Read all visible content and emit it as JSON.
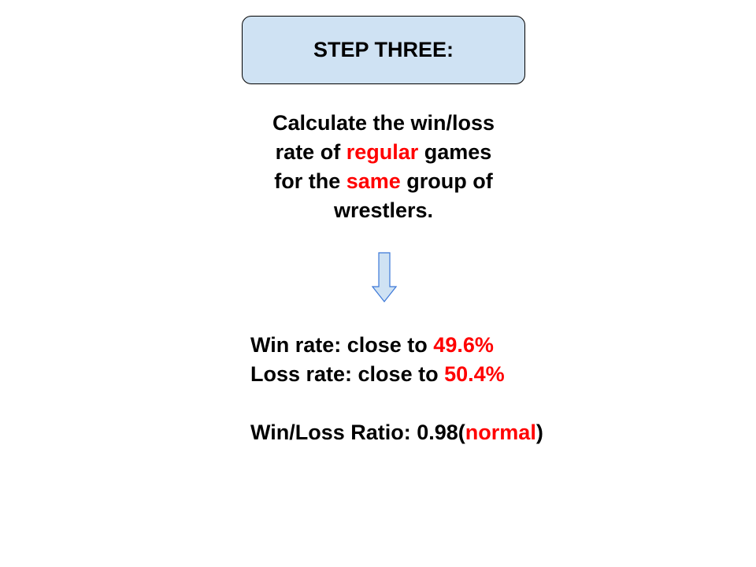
{
  "step": {
    "title": "STEP THREE:"
  },
  "instruction": {
    "line1": "Calculate the win/loss",
    "line2_pre": "rate of ",
    "line2_hl": "regular",
    "line2_post": " games",
    "line3_pre": "for the ",
    "line3_hl": "same",
    "line3_post": " group of",
    "line4": "wrestlers."
  },
  "arrow": {
    "icon": "down-arrow-icon",
    "fill": "#cfe2f3",
    "stroke": "#3c78d8"
  },
  "results": {
    "win_label": "Win rate: close to ",
    "win_value": "49.6%",
    "loss_label": "Loss rate: close to ",
    "loss_value": "50.4%",
    "ratio_label": "Win/Loss Ratio: 0.98(",
    "ratio_status": "normal",
    "ratio_close": ")"
  },
  "colors": {
    "highlight": "#ff0000",
    "box_fill": "#cfe2f3"
  }
}
